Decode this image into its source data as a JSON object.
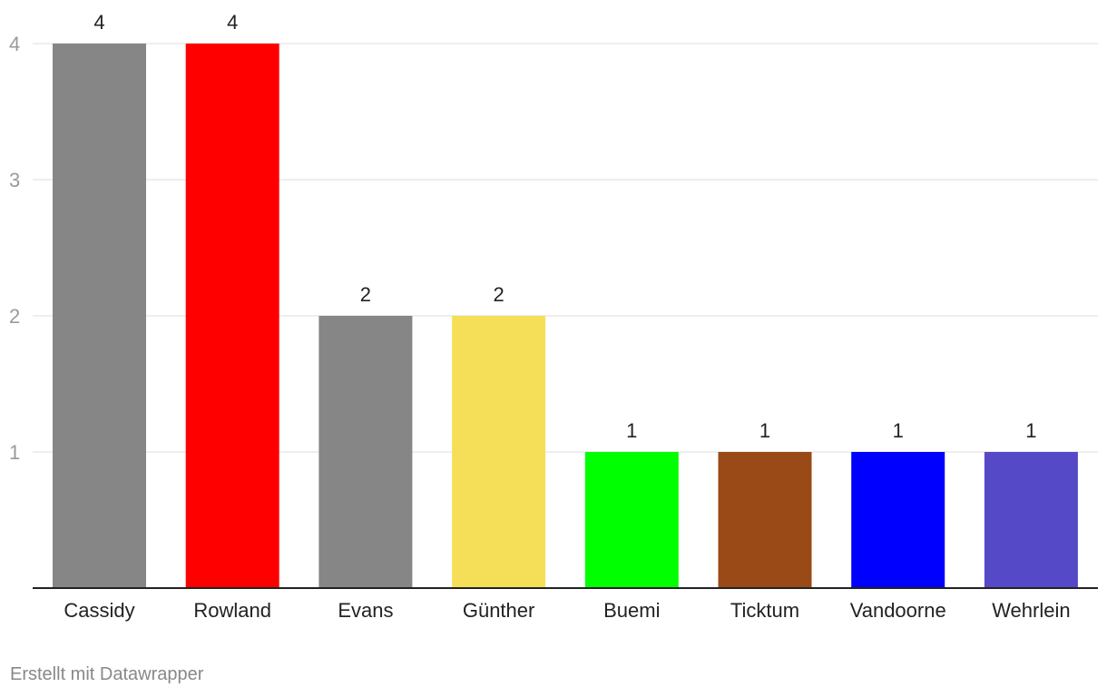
{
  "chart_data": {
    "type": "bar",
    "title": "",
    "xlabel": "",
    "ylabel": "",
    "categories": [
      "Cassidy",
      "Rowland",
      "Evans",
      "Günther",
      "Buemi",
      "Ticktum",
      "Vandoorne",
      "Wehrlein"
    ],
    "values": [
      4,
      4,
      2,
      2,
      1,
      1,
      1,
      1
    ],
    "value_labels": [
      "4",
      "4",
      "2",
      "2",
      "1",
      "1",
      "1",
      "1"
    ],
    "colors": [
      "#868686",
      "#ff0000",
      "#868686",
      "#f5df59",
      "#00ff00",
      "#994a16",
      "#0000ff",
      "#5649c7"
    ],
    "ylim": [
      0,
      4
    ],
    "yticks": [
      1,
      2,
      3,
      4
    ],
    "ytick_labels": [
      "1",
      "2",
      "3",
      "4"
    ],
    "grid": true,
    "legend": "none"
  },
  "footer": {
    "credit": "Erstellt mit Datawrapper"
  }
}
